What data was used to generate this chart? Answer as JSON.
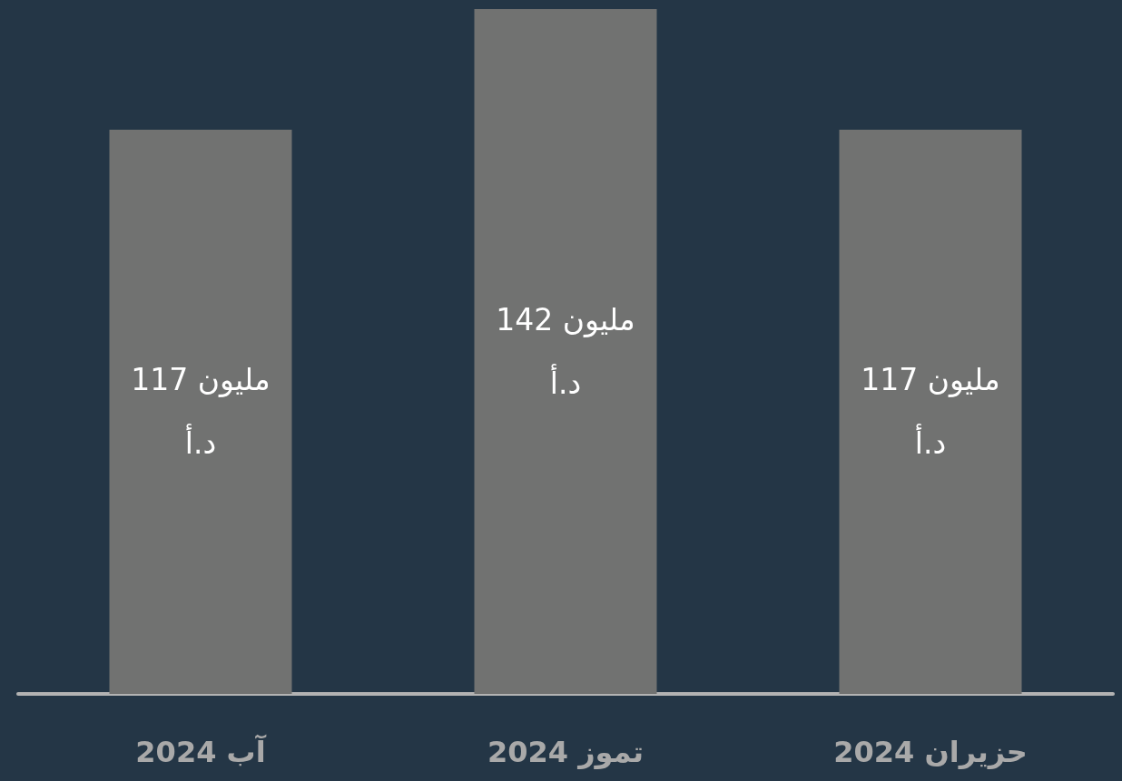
{
  "chart_data": {
    "type": "bar",
    "categories": [
      "آب 2024",
      "تموز 2024",
      "حزيران 2024"
    ],
    "values": [
      117,
      142,
      117
    ],
    "value_labels": [
      "117 مليون د.أ",
      "142 مليون د.أ",
      "117 مليون د.أ"
    ],
    "color": "#717271"
  }
}
